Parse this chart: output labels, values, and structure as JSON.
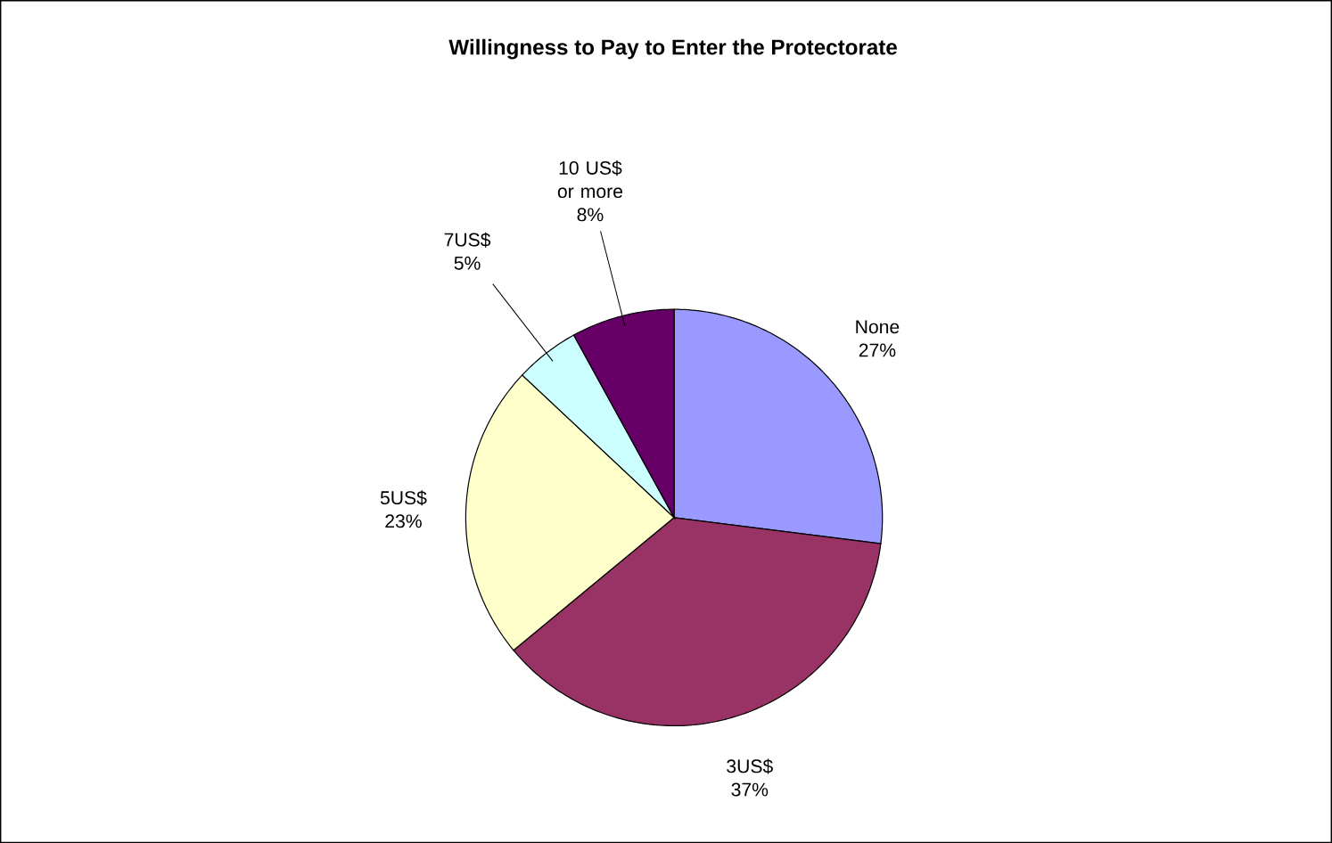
{
  "chart_data": {
    "type": "pie",
    "title": "Willingness to Pay to Enter the Protectorate",
    "categories": [
      "None",
      "3US$",
      "5US$",
      "7US$",
      "10 US$ or more"
    ],
    "values": [
      27,
      37,
      23,
      5,
      8
    ],
    "value_labels": [
      "27%",
      "37%",
      "23%",
      "5%",
      "8%"
    ],
    "colors": [
      "#9999ff",
      "#993366",
      "#ffffcc",
      "#ccffff",
      "#660066"
    ]
  }
}
